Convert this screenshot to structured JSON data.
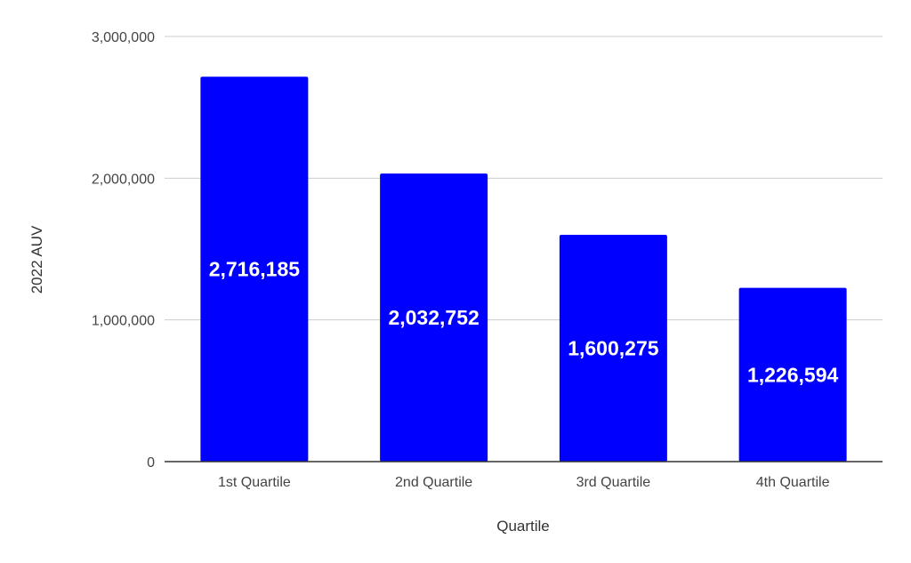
{
  "chart_data": {
    "type": "bar",
    "title": "",
    "xlabel": "Quartile",
    "ylabel": "2022 AUV",
    "categories": [
      "1st Quartile",
      "2nd Quartile",
      "3rd Quartile",
      "4th Quartile"
    ],
    "values": [
      2716185,
      2032752,
      1600275,
      1226594
    ],
    "data_labels": [
      "2,716,185",
      "2,032,752",
      "1,600,275",
      "1,226,594"
    ],
    "ylim": [
      0,
      3000000
    ],
    "yticks": [
      0,
      1000000,
      2000000,
      3000000
    ],
    "ytick_labels": [
      "0",
      "1,000,000",
      "2,000,000",
      "3,000,000"
    ],
    "grid": true,
    "legend": "none",
    "bar_color": "#0000ff"
  }
}
